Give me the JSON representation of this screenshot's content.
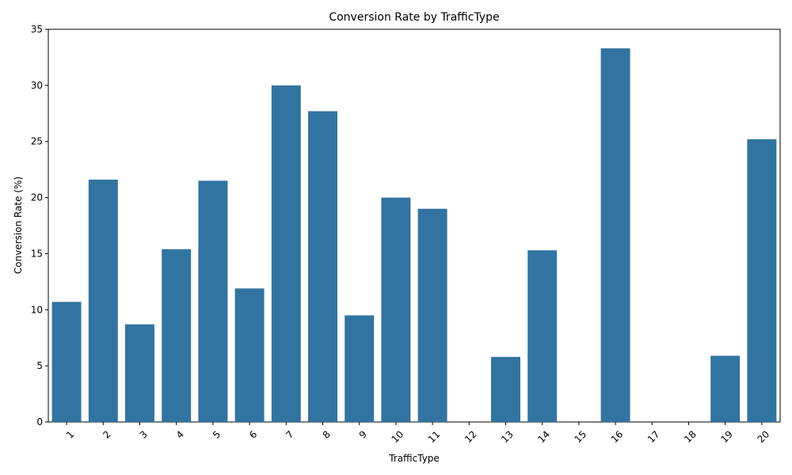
{
  "chart_data": {
    "type": "bar",
    "title": "Conversion Rate by TrafficType",
    "xlabel": "TrafficType",
    "ylabel": "Conversion Rate (%)",
    "categories": [
      "1",
      "2",
      "3",
      "4",
      "5",
      "6",
      "7",
      "8",
      "9",
      "10",
      "11",
      "12",
      "13",
      "14",
      "15",
      "16",
      "17",
      "18",
      "19",
      "20"
    ],
    "values": [
      10.7,
      21.6,
      8.7,
      15.4,
      21.5,
      11.9,
      30.0,
      27.7,
      9.5,
      20.0,
      19.0,
      0,
      5.8,
      15.3,
      0,
      33.3,
      0,
      0,
      5.9,
      25.2
    ],
    "ylim": [
      0,
      35
    ],
    "yticks": [
      0,
      5,
      10,
      15,
      20,
      25,
      30,
      35
    ],
    "bar_color": "#3274a1",
    "grid": false,
    "x_tick_rotation": 45
  }
}
